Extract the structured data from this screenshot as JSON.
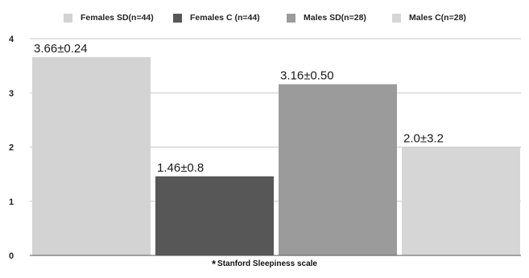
{
  "chart_data": {
    "type": "bar",
    "categories": [
      "Females SD(n=44)",
      "Females C (n=44)",
      "Males SD(n=28)",
      "Males C(n=28)"
    ],
    "values": [
      3.66,
      1.46,
      3.16,
      2.0
    ],
    "data_labels": [
      "3.66±0.24",
      "1.46±0.8",
      "3.16±0.50",
      "2.0±3.2"
    ],
    "colors": [
      "#d3d3d3",
      "#575757",
      "#9b9b9b",
      "#d6d6d6"
    ],
    "ylim": [
      0,
      4
    ],
    "yticks": [
      0,
      1,
      2,
      3,
      4
    ],
    "grid": true,
    "legend_position": "top",
    "footnote_marker": "*",
    "footnote": "Stanford Sleepiness scale"
  }
}
